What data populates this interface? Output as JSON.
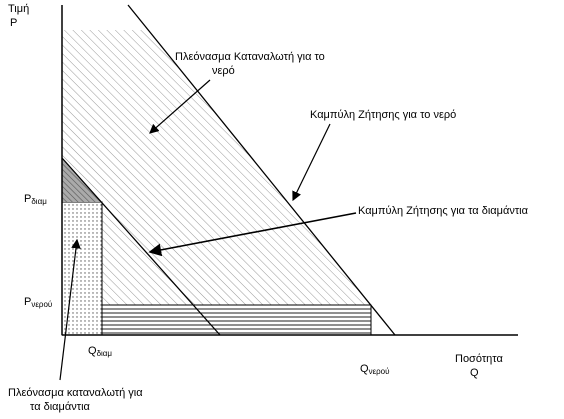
{
  "axes": {
    "y_label": [
      "Τιμή",
      "P"
    ],
    "x_label": [
      "Ποσότητα",
      "Q"
    ]
  },
  "levels": {
    "p_diamonds": {
      "main": "P",
      "sub": "διαμ"
    },
    "p_water": {
      "main": "P",
      "sub": "νερού"
    },
    "q_diamonds": {
      "main": "Q",
      "sub": "διαμ"
    },
    "q_water": {
      "main": "Q",
      "sub": "νερού"
    }
  },
  "annotations": {
    "water_surplus": [
      "Πλεόνασμα Καταναλωτή για το",
      "νερό"
    ],
    "water_demand": "Καμπύλη Ζήτησης για το νερό",
    "diamond_demand": "Καμπύλη Ζήτησης για τα διαμάντια",
    "diamond_surplus": [
      "Πλεόνασμα καταναλωτή για",
      "τα διαμάντια"
    ]
  }
}
